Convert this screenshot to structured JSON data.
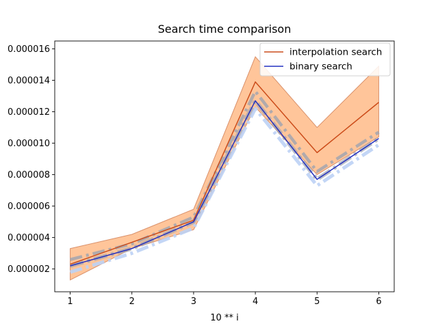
{
  "chart_data": {
    "type": "line",
    "title": "Search time comparison",
    "xlabel": "10 ** i",
    "ylabel": "",
    "x": [
      1,
      2,
      3,
      4,
      5,
      6
    ],
    "xlim": [
      0.75,
      6.25
    ],
    "ylim": [
      5.5e-07,
      1.65e-05
    ],
    "xticks": [
      1,
      2,
      3,
      4,
      5,
      6
    ],
    "yticks": [
      2e-06,
      4e-06,
      6e-06,
      8e-06,
      1e-05,
      1.2e-05,
      1.4e-05,
      1.6e-05
    ],
    "ytick_labels": [
      "0.000002",
      "0.000004",
      "0.000006",
      "0.000008",
      "0.000010",
      "0.000012",
      "0.000014",
      "0.000016"
    ],
    "grid": false,
    "legend_position": "top-right",
    "series": [
      {
        "name": "interpolation search",
        "values": [
          2.3e-06,
          3.7e-06,
          5.1e-06,
          1.39e-05,
          9.4e-06,
          1.26e-05
        ],
        "band_lower": [
          1.3e-06,
          3.3e-06,
          4.5e-06,
          1.23e-05,
          8e-06,
          1.04e-05
        ],
        "band_upper": [
          3.3e-06,
          4.2e-06,
          5.8e-06,
          1.55e-05,
          1.1e-05,
          1.49e-05
        ],
        "color": "#cc4c1a",
        "band_color": "#ffbb88",
        "band_edge_color": "#d9906a"
      },
      {
        "name": "binary search",
        "values": [
          2.2e-06,
          3.3e-06,
          5e-06,
          1.27e-05,
          7.7e-06,
          1.03e-05
        ],
        "band_lower": [
          1.8e-06,
          3e-06,
          4.6e-06,
          1.22e-05,
          7.3e-06,
          9.9e-06
        ],
        "band_upper": [
          2.6e-06,
          3.6e-06,
          5.3e-06,
          1.33e-05,
          8.2e-06,
          1.07e-05
        ],
        "color": "#2230c0",
        "band_color": "#9ea3b0",
        "band_edge_color": "#bdd2f5"
      }
    ]
  }
}
